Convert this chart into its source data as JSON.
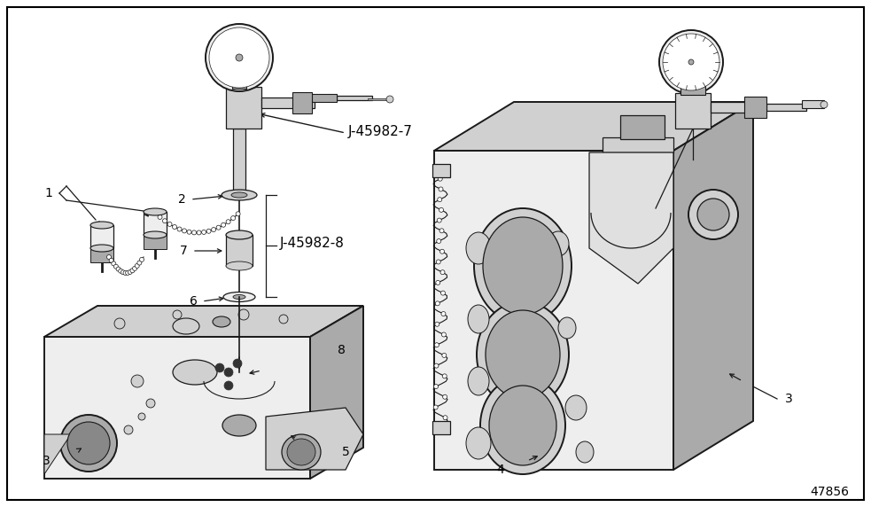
{
  "fig_width": 9.83,
  "fig_height": 5.72,
  "dpi": 100,
  "bg_color": "#ffffff",
  "border_color": "#000000",
  "line_color": "#1a1a1a",
  "text_color": "#000000",
  "title_number": "47856",
  "lw_main": 0.9,
  "lw_thick": 1.4,
  "lw_thin": 0.5,
  "gray_light": "#eeeeee",
  "gray_mid": "#d0d0d0",
  "gray_dark": "#aaaaaa",
  "gray_darker": "#888888"
}
